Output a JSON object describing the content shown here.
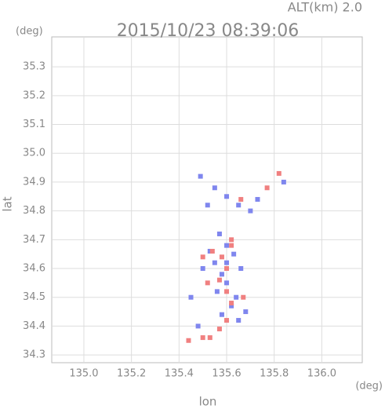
{
  "chart_data": {
    "type": "scatter",
    "title": "2015/10/23 08:39:06",
    "altitude_label": "ALT(km) 2.0",
    "y_unit": "(deg)",
    "x_unit": "(deg)",
    "ylabel": "lat",
    "xlabel": "lon",
    "xlim": [
      134.865,
      136.17
    ],
    "ylim": [
      34.273,
      35.404
    ],
    "xticks": [
      {
        "value": 135,
        "label": "135.0"
      },
      135.2,
      135.4,
      135.6,
      135.8,
      {
        "value": 136,
        "label": "136.0"
      }
    ],
    "yticks": [
      34.3,
      34.4,
      34.5,
      34.6,
      34.7,
      34.8,
      34.9,
      {
        "value": 35,
        "label": "35.0"
      },
      35.1,
      35.2,
      35.3
    ],
    "grid": true,
    "series": [
      {
        "color": "#7f86ee",
        "x": [
          135.49,
          135.55,
          135.6,
          135.65,
          135.7,
          135.84,
          135.57,
          135.6,
          135.63,
          135.55,
          135.5,
          135.58,
          135.6,
          135.64,
          135.45,
          135.62,
          135.65,
          135.58,
          135.56,
          135.6,
          135.66,
          135.53,
          135.48,
          135.68,
          135.73,
          135.52
        ],
        "values": [
          34.92,
          34.88,
          34.85,
          34.82,
          34.8,
          34.9,
          34.72,
          34.68,
          34.65,
          34.62,
          34.6,
          34.58,
          34.55,
          34.5,
          34.5,
          34.47,
          34.42,
          34.44,
          34.52,
          34.62,
          34.6,
          34.66,
          34.4,
          34.45,
          34.84,
          34.82
        ]
      },
      {
        "color": "#f08080",
        "x": [
          135.44,
          135.5,
          135.53,
          135.57,
          135.6,
          135.62,
          135.6,
          135.57,
          135.6,
          135.58,
          135.62,
          135.54,
          135.5,
          135.66,
          135.77,
          135.82,
          135.52,
          135.67,
          135.62
        ],
        "values": [
          34.35,
          34.36,
          34.36,
          34.39,
          34.42,
          34.48,
          34.52,
          34.56,
          34.6,
          34.64,
          34.68,
          34.66,
          34.64,
          34.84,
          34.88,
          34.93,
          34.55,
          34.5,
          34.7
        ]
      }
    ]
  }
}
